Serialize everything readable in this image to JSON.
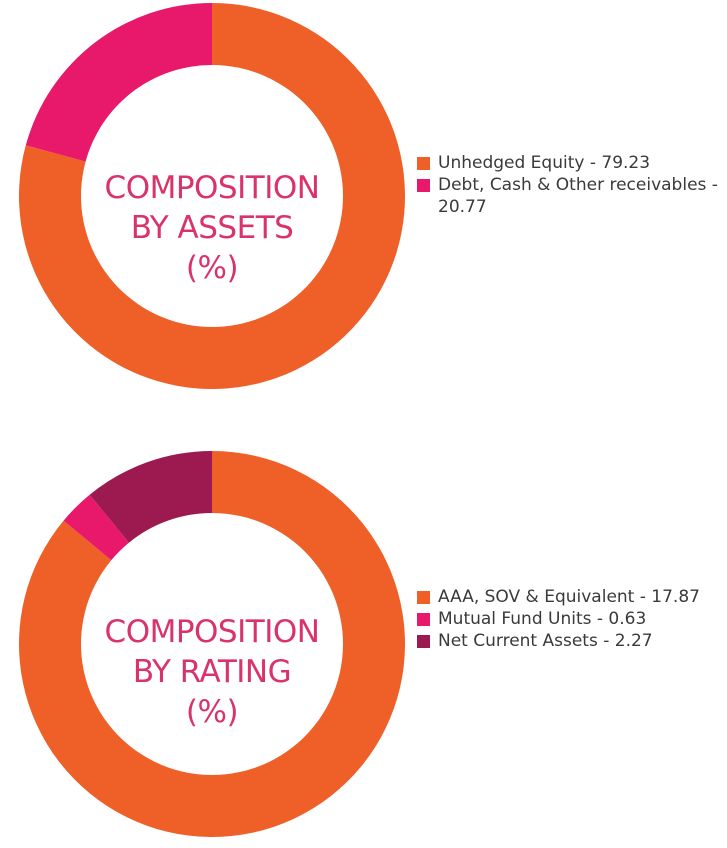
{
  "chart_data": [
    {
      "type": "pie",
      "variant": "donut",
      "center_title": [
        "COMPOSITION",
        "BY ASSETS",
        "(%)"
      ],
      "center_color": "#d9336a",
      "legend_position": "right",
      "series": [
        {
          "label": "Unhedged Equity - 79.23",
          "value": 79.23,
          "color": "#ef5f28"
        },
        {
          "label": "Debt, Cash & Other receivables - 20.77",
          "value": 20.77,
          "color": "#e8196b"
        }
      ]
    },
    {
      "type": "pie",
      "variant": "donut",
      "center_title": [
        "COMPOSITION",
        "BY RATING",
        "(%)"
      ],
      "center_color": "#d9336a",
      "legend_position": "right",
      "series": [
        {
          "label": "AAA, SOV & Equivalent - 17.87",
          "value": 17.87,
          "color": "#ef5f28"
        },
        {
          "label": "Mutual Fund Units - 0.63",
          "value": 0.63,
          "color": "#e8196b"
        },
        {
          "label": "Net Current Assets - 2.27",
          "value": 2.27,
          "color": "#9c1a50"
        }
      ]
    }
  ]
}
